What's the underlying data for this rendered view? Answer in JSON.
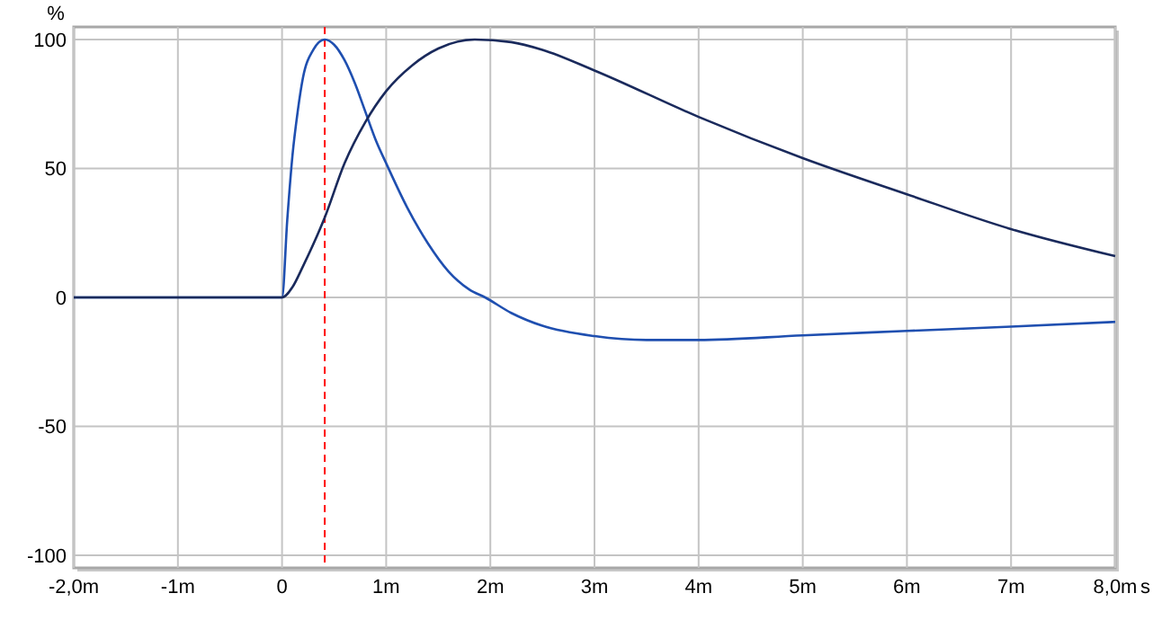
{
  "chart_data": {
    "type": "line",
    "xlabel": "s",
    "ylabel": "%",
    "xlim": [
      -2,
      8
    ],
    "ylim": [
      -100,
      100
    ],
    "xticks": [
      {
        "value": -2,
        "label": "-2,0m"
      },
      {
        "value": -1,
        "label": "-1m"
      },
      0,
      {
        "value": 1,
        "label": "1m"
      },
      {
        "value": 2,
        "label": "2m"
      },
      {
        "value": 3,
        "label": "3m"
      },
      {
        "value": 4,
        "label": "4m"
      },
      {
        "value": 5,
        "label": "5m"
      },
      {
        "value": 6,
        "label": "6m"
      },
      {
        "value": 7,
        "label": "7m"
      },
      {
        "value": 8,
        "label": "8,0m"
      }
    ],
    "yticks": [
      -100,
      -50,
      0,
      50,
      100
    ],
    "grid": true,
    "line_style": "solid",
    "marker": "none",
    "ref_lines": [
      {
        "axis": "x",
        "value": 0.41,
        "color": "#ff0000",
        "line_style": "dashed"
      }
    ],
    "series": [
      {
        "color": "#1f4fb0",
        "x": [
          -2,
          0,
          0.05,
          0.1,
          0.15,
          0.2,
          0.3,
          0.41,
          0.5,
          0.6,
          0.7,
          0.8,
          0.9,
          1.0,
          1.2,
          1.4,
          1.6,
          1.8,
          1.95,
          2.2,
          2.5,
          3.0,
          3.5,
          4,
          5,
          6,
          7,
          8
        ],
        "values": [
          0,
          0,
          30,
          55,
          72,
          85,
          96,
          100,
          98,
          92,
          83,
          72,
          61,
          52,
          35,
          21,
          10,
          3,
          0,
          -6,
          -11,
          -15,
          -16.5,
          -16.5,
          -14.7,
          -13,
          -11.3,
          -9.5
        ]
      },
      {
        "color": "#1a2a5c",
        "x": [
          -2,
          0,
          0.1,
          0.2,
          0.41,
          0.6,
          0.8,
          1.0,
          1.25,
          1.5,
          1.85,
          2.2,
          2.5,
          3,
          4,
          5,
          6,
          7,
          8
        ],
        "values": [
          0,
          0,
          4,
          12,
          31,
          52,
          68,
          80,
          90,
          96.5,
          100,
          99,
          96,
          88,
          70,
          54,
          40,
          26.5,
          16
        ]
      }
    ]
  }
}
